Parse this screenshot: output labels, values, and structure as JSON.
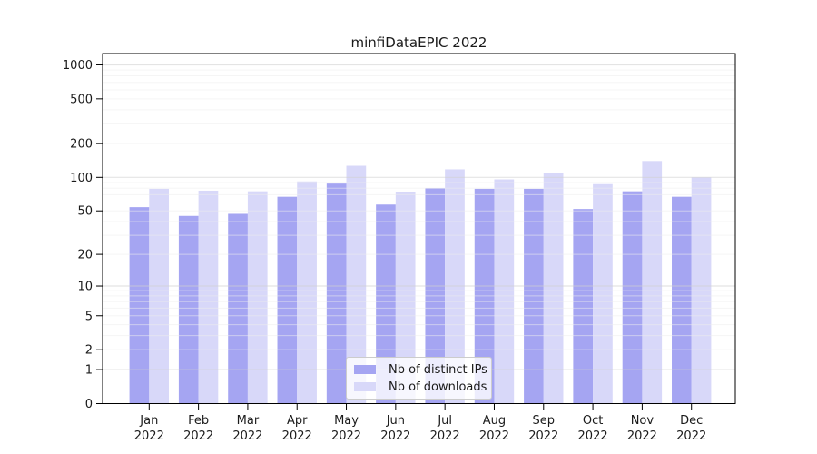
{
  "chart_data": {
    "type": "bar",
    "title": "minfiDataEPIC 2022",
    "categories": [
      "Jan",
      "Feb",
      "Mar",
      "Apr",
      "May",
      "Jun",
      "Jul",
      "Aug",
      "Sep",
      "Oct",
      "Nov",
      "Dec"
    ],
    "category_year": "2022",
    "series": [
      {
        "name": "Nb of distinct IPs",
        "color": "#a5a5f2",
        "values": [
          54,
          45,
          47,
          67,
          88,
          57,
          80,
          79,
          79,
          52,
          75,
          67
        ]
      },
      {
        "name": "Nb of downloads",
        "color": "#d8d8f9",
        "values": [
          79,
          76,
          75,
          92,
          127,
          74,
          118,
          96,
          110,
          87,
          140,
          100
        ]
      }
    ],
    "y_axis": {
      "scale": "log1p",
      "ticks": [
        0,
        1,
        2,
        5,
        10,
        20,
        50,
        100,
        200,
        500,
        1000
      ],
      "range": [
        0,
        1260
      ]
    },
    "x_axis": {
      "tick_label_lines": 2
    },
    "grid": {
      "major": true,
      "minor": true,
      "major_color": "#cfcfcf",
      "minor_color": "#ededed"
    },
    "legend": {
      "position": "lower-center",
      "entries": [
        "Nb of distinct IPs",
        "Nb of downloads"
      ]
    },
    "colors": {
      "text": "#1a1a1a",
      "spine": "#000000",
      "background": "#ffffff"
    }
  }
}
